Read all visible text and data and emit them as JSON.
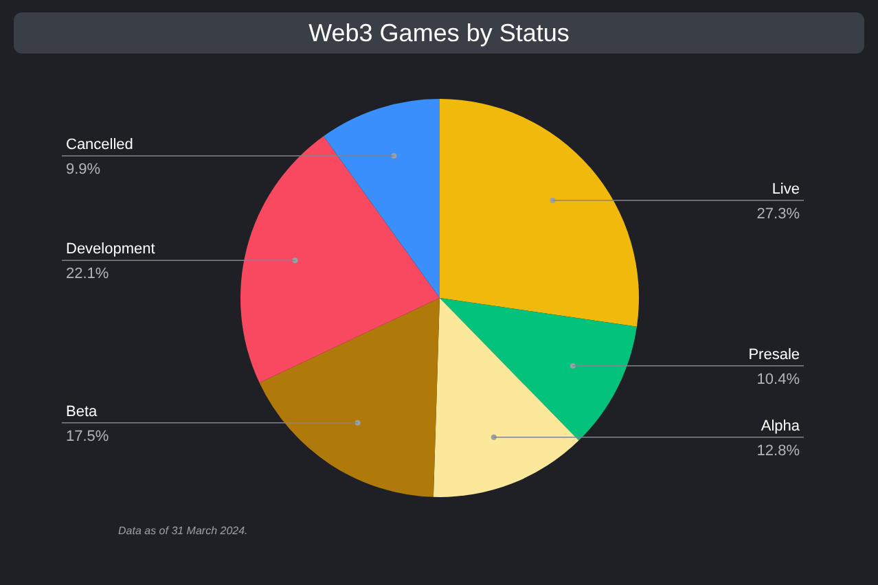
{
  "chart_data": {
    "type": "pie",
    "title": "Web3 Games by Status",
    "categories": [
      "Live",
      "Presale",
      "Alpha",
      "Beta",
      "Development",
      "Cancelled"
    ],
    "values": [
      27.3,
      10.4,
      12.8,
      17.5,
      22.1,
      9.9
    ],
    "value_labels": [
      "27.3%",
      "10.4%",
      "12.8%",
      "17.5%",
      "22.1%",
      "9.9%"
    ],
    "colors": [
      "#f0b90b",
      "#03c27b",
      "#fbe89a",
      "#b07a0a",
      "#f84960",
      "#3a8ffd"
    ],
    "annotations": [
      "Data as of 31 March 2024."
    ]
  }
}
